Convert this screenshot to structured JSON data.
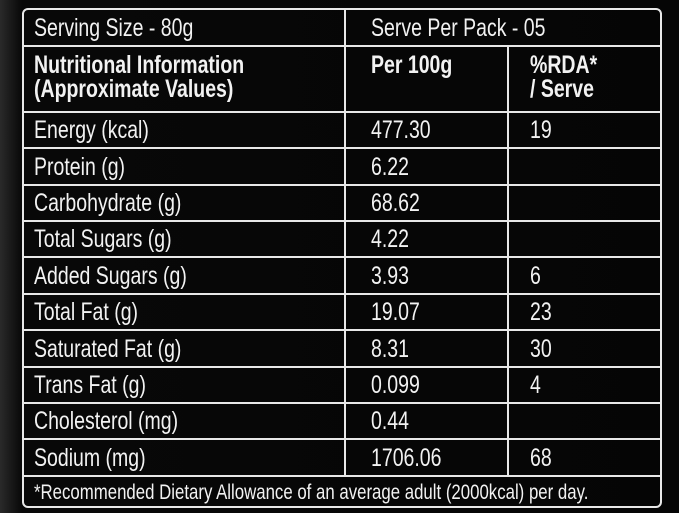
{
  "header": {
    "serving_size": "Serving Size - 80g",
    "serve_per_pack": "Serve Per Pack - 05"
  },
  "table": {
    "columns": [
      [
        "Nutritional Information",
        "(Approximate Values)"
      ],
      [
        "Per 100g"
      ],
      [
        "%RDA*",
        "/ Serve"
      ]
    ],
    "rows": [
      [
        "Energy (kcal)",
        "477.30",
        "19"
      ],
      [
        "Protein (g)",
        "6.22",
        null
      ],
      [
        "Carbohydrate (g)",
        "68.62",
        null
      ],
      [
        "Total Sugars (g)",
        "4.22",
        null
      ],
      [
        "Added Sugars (g)",
        "3.93",
        "6"
      ],
      [
        "Total Fat (g)",
        "19.07",
        "23"
      ],
      [
        "Saturated Fat (g)",
        "8.31",
        "30"
      ],
      [
        "Trans Fat (g)",
        "0.099",
        "4"
      ],
      [
        "Cholesterol (mg)",
        "0.44",
        null
      ],
      [
        "Sodium (mg)",
        "1706.06",
        "68"
      ]
    ]
  },
  "footnote": "*Recommended Dietary Allowance of an average adult (2000kcal) per day."
}
